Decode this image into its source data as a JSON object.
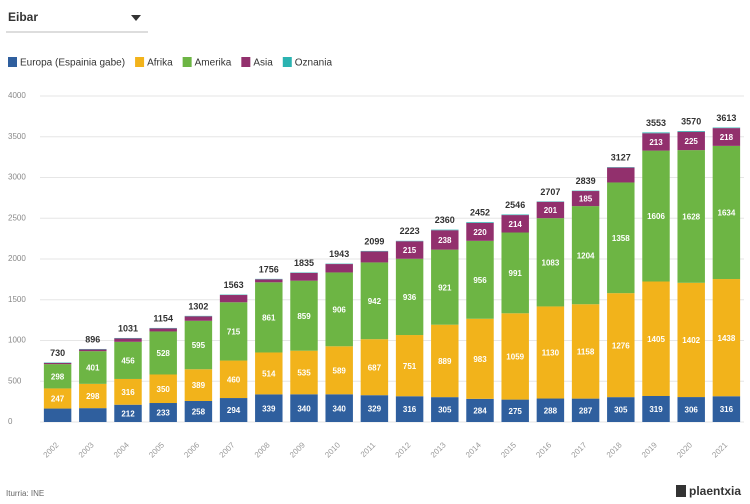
{
  "dropdown": {
    "selected": "Eibar"
  },
  "chart_data": {
    "type": "stacked-bar",
    "categories": [
      "2002",
      "2003",
      "2004",
      "2005",
      "2006",
      "2007",
      "2008",
      "2009",
      "2010",
      "2011",
      "2012",
      "2013",
      "2014",
      "2015",
      "2016",
      "2017",
      "2018",
      "2019",
      "2020",
      "2021"
    ],
    "series": [
      {
        "name": "Europa (Espainia gabe)",
        "color": "#2f5f9e",
        "values": [
          165,
          170,
          212,
          233,
          258,
          294,
          339,
          340,
          340,
          329,
          316,
          305,
          284,
          275,
          288,
          287,
          305,
          319,
          306,
          316
        ]
      },
      {
        "name": "Afrika",
        "color": "#f2b31b",
        "values": [
          247,
          298,
          316,
          350,
          389,
          460,
          514,
          535,
          589,
          687,
          751,
          889,
          983,
          1059,
          1130,
          1158,
          1276,
          1405,
          1402,
          1438
        ]
      },
      {
        "name": "Amerika",
        "color": "#6db544",
        "values": [
          298,
          401,
          456,
          528,
          595,
          715,
          861,
          859,
          906,
          942,
          936,
          921,
          956,
          991,
          1083,
          1204,
          1358,
          1606,
          1628,
          1634
        ]
      },
      {
        "name": "Asia",
        "color": "#92306d",
        "values": [
          15,
          22,
          42,
          38,
          55,
          89,
          37,
          96,
          103,
          136,
          215,
          238,
          220,
          214,
          201,
          185,
          183,
          213,
          225,
          218
        ]
      },
      {
        "name": "Oznania",
        "color": "#2bb3b1",
        "values": [
          5,
          5,
          5,
          5,
          5,
          5,
          5,
          5,
          5,
          5,
          5,
          7,
          9,
          7,
          5,
          5,
          5,
          10,
          9,
          7
        ]
      }
    ],
    "totals": [
      730,
      896,
      1031,
      1154,
      1302,
      1563,
      1756,
      1835,
      1943,
      2099,
      2223,
      2360,
      2452,
      2546,
      2707,
      2839,
      3127,
      3553,
      3570,
      3613
    ],
    "ylim": [
      0,
      4000
    ],
    "yticks": [
      0,
      500,
      1000,
      1500,
      2000,
      2500,
      3000,
      3500,
      4000
    ],
    "grid": true,
    "legend": "top-left",
    "source": "Iturria: INE",
    "brand": "plaentxia"
  }
}
